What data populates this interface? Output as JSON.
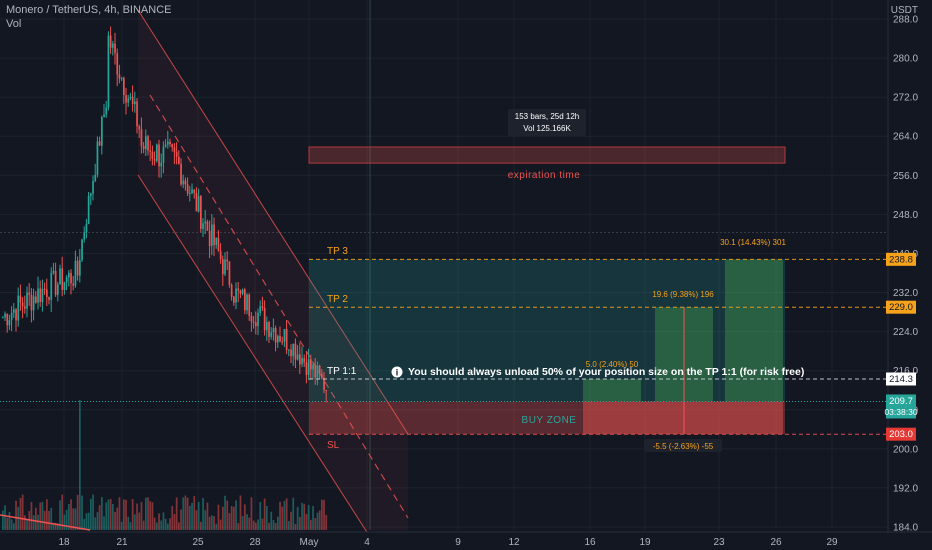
{
  "header": {
    "title": "Monero / TetherUS, 4h, BINANCE",
    "sub": "Vol"
  },
  "axis": {
    "currency": "USDT"
  },
  "colors": {
    "up": "#26a69a",
    "down": "#ef5350",
    "bg": "#131722",
    "orange": "#f7a21b",
    "grid": "#1e222d"
  },
  "chart_data": {
    "type": "candlestick",
    "y_ticks": [
      "288.0",
      "280.0",
      "272.0",
      "264.0",
      "256.0",
      "248.0",
      "240.0",
      "232.0",
      "224.0",
      "216.0",
      "208.0",
      "200.0",
      "192.0",
      "184.0"
    ],
    "y_range": [
      183,
      290
    ],
    "x_ticks": [
      "18",
      "21",
      "25",
      "28",
      "May",
      "4",
      "9",
      "12",
      "16",
      "19",
      "23",
      "26",
      "29"
    ],
    "price_labels": {
      "tp3": "238.8",
      "tp2": "229.0",
      "tp1": "214.3",
      "last": "209.7",
      "countdown": "03:38:30",
      "sl": "203.0"
    },
    "annotations": {
      "measure_line1": "153 bars, 25d 12h",
      "measure_line2": "Vol 125.166K",
      "expiration": "expiration time",
      "tp3_label": "TP 3",
      "tp2_label": "TP 2",
      "tp1_label": "TP 1:1",
      "sl_label": "SL",
      "note": "You should always unload 50% of your position size on the TP 1:1 (for risk free)",
      "buy_zone": "BUY ZONE",
      "r1": "5.0 (2.40%) 50",
      "r2": "19.6 (9.38%) 196",
      "r3": "30.1 (14.43%) 301",
      "loss": "-5.5 (-2.63%) -55"
    }
  }
}
